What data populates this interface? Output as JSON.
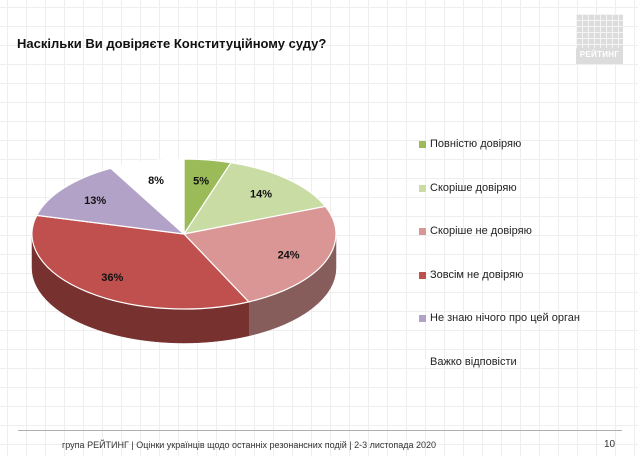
{
  "header": {
    "title": "Наскільки Ви довіряєте Конституційному суду?",
    "logo_text": "РЕЙТИНГ"
  },
  "chart_data": {
    "type": "pie",
    "title": "Наскільки Ви довіряєте Конституційному суду?",
    "categories": [
      "Повністю довіряю",
      "Скоріше довіряю",
      "Скоріше не довіряю",
      "Зовсім не довіряю",
      "Не знаю нічого про цей орган",
      "Важко відповісти"
    ],
    "values": [
      5,
      14,
      24,
      36,
      13,
      8
    ],
    "data_labels": [
      "5%",
      "14%",
      "24%",
      "36%",
      "13%",
      "8%"
    ],
    "colors": [
      "#9BBB59",
      "#C9DCA4",
      "#D99694",
      "#C0504D",
      "#B3A2C7",
      "#FFFFFF"
    ],
    "legend_position": "right",
    "style": "3d-pie"
  },
  "footer": {
    "text": "група РЕЙТИНГ | Оцінки українців щодо останніх резонансних подій | 2-3 листопада 2020",
    "page_number": "10"
  }
}
